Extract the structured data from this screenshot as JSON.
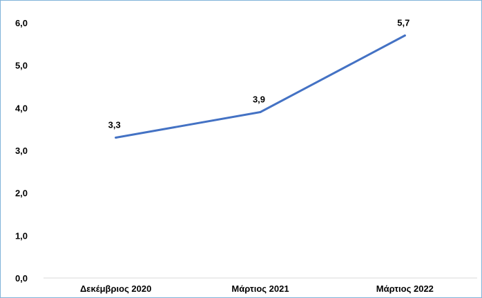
{
  "chart_data": {
    "type": "line",
    "categories": [
      "Δεκέμβριος 2020",
      "Μάρτιος 2021",
      "Μάρτιος 2022"
    ],
    "series": [
      {
        "values": [
          3.3,
          3.9,
          5.7
        ],
        "color": "#4472c4",
        "data_labels": [
          "3,3",
          "3,9",
          "5,7"
        ]
      }
    ],
    "ylim": [
      0,
      6
    ],
    "yticks": [
      0,
      1,
      2,
      3,
      4,
      5,
      6
    ],
    "ytick_labels": [
      "0,0",
      "1,0",
      "2,0",
      "3,0",
      "4,0",
      "5,0",
      "6,0"
    ],
    "grid": false,
    "legend": "none",
    "title": "",
    "xlabel": "",
    "ylabel": ""
  }
}
